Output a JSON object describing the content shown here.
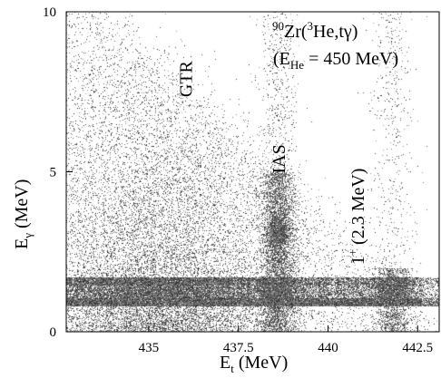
{
  "chart_data": {
    "type": "heatmap",
    "title": "",
    "annotation_reaction": {
      "superscript": "90",
      "main": "Zr(",
      "superscript2": "3",
      "rest": "He,tγ)"
    },
    "annotation_energy": {
      "open": "(E",
      "sub": "He",
      "rest": " = 450 MeV)"
    },
    "xlabel": {
      "main": "E",
      "sub": "t",
      "rest": " (MeV)"
    },
    "ylabel": {
      "main": "E",
      "sub": "γ",
      "rest": " (MeV)"
    },
    "xlim": [
      432.7,
      443.1
    ],
    "ylim": [
      0,
      10
    ],
    "x_ticks": [
      {
        "value": 435,
        "label": "435"
      },
      {
        "value": 437.5,
        "label": "437.5"
      },
      {
        "value": 440,
        "label": "440"
      },
      {
        "value": 442.5,
        "label": "442.5"
      }
    ],
    "y_ticks": [
      {
        "value": 0,
        "label": "0"
      },
      {
        "value": 5,
        "label": "5"
      },
      {
        "value": 10,
        "label": "10"
      }
    ],
    "peak_labels": [
      {
        "id": "gtr",
        "text": "GTR",
        "x": 436.2,
        "y": 7.9
      },
      {
        "id": "ias",
        "text": "IAS",
        "x": 438.8,
        "y": 5.4
      },
      {
        "id": "one-plus",
        "main": "1",
        "sup": "+",
        "rest": " (2.3 MeV)",
        "x": 441.0,
        "y": 3.6
      }
    ],
    "features": [
      {
        "name": "GTR",
        "x_center": 435.3,
        "x_width": 1.9,
        "y_extent": [
          0.5,
          8.0
        ]
      },
      {
        "name": "IAS",
        "x_center": 438.6,
        "x_width": 0.28,
        "y_extent": [
          0.5,
          5.0
        ],
        "hot_spot_y": 3.1
      },
      {
        "name": "1+ (2.3 MeV)",
        "x_center": 441.8,
        "x_width": 0.3,
        "y_extent": [
          0.6,
          2.0
        ]
      },
      {
        "name": "low-energy band",
        "y_extent": [
          0.8,
          1.7
        ]
      }
    ],
    "colors": {
      "counts": "#000000",
      "background": "#ffffff"
    }
  }
}
